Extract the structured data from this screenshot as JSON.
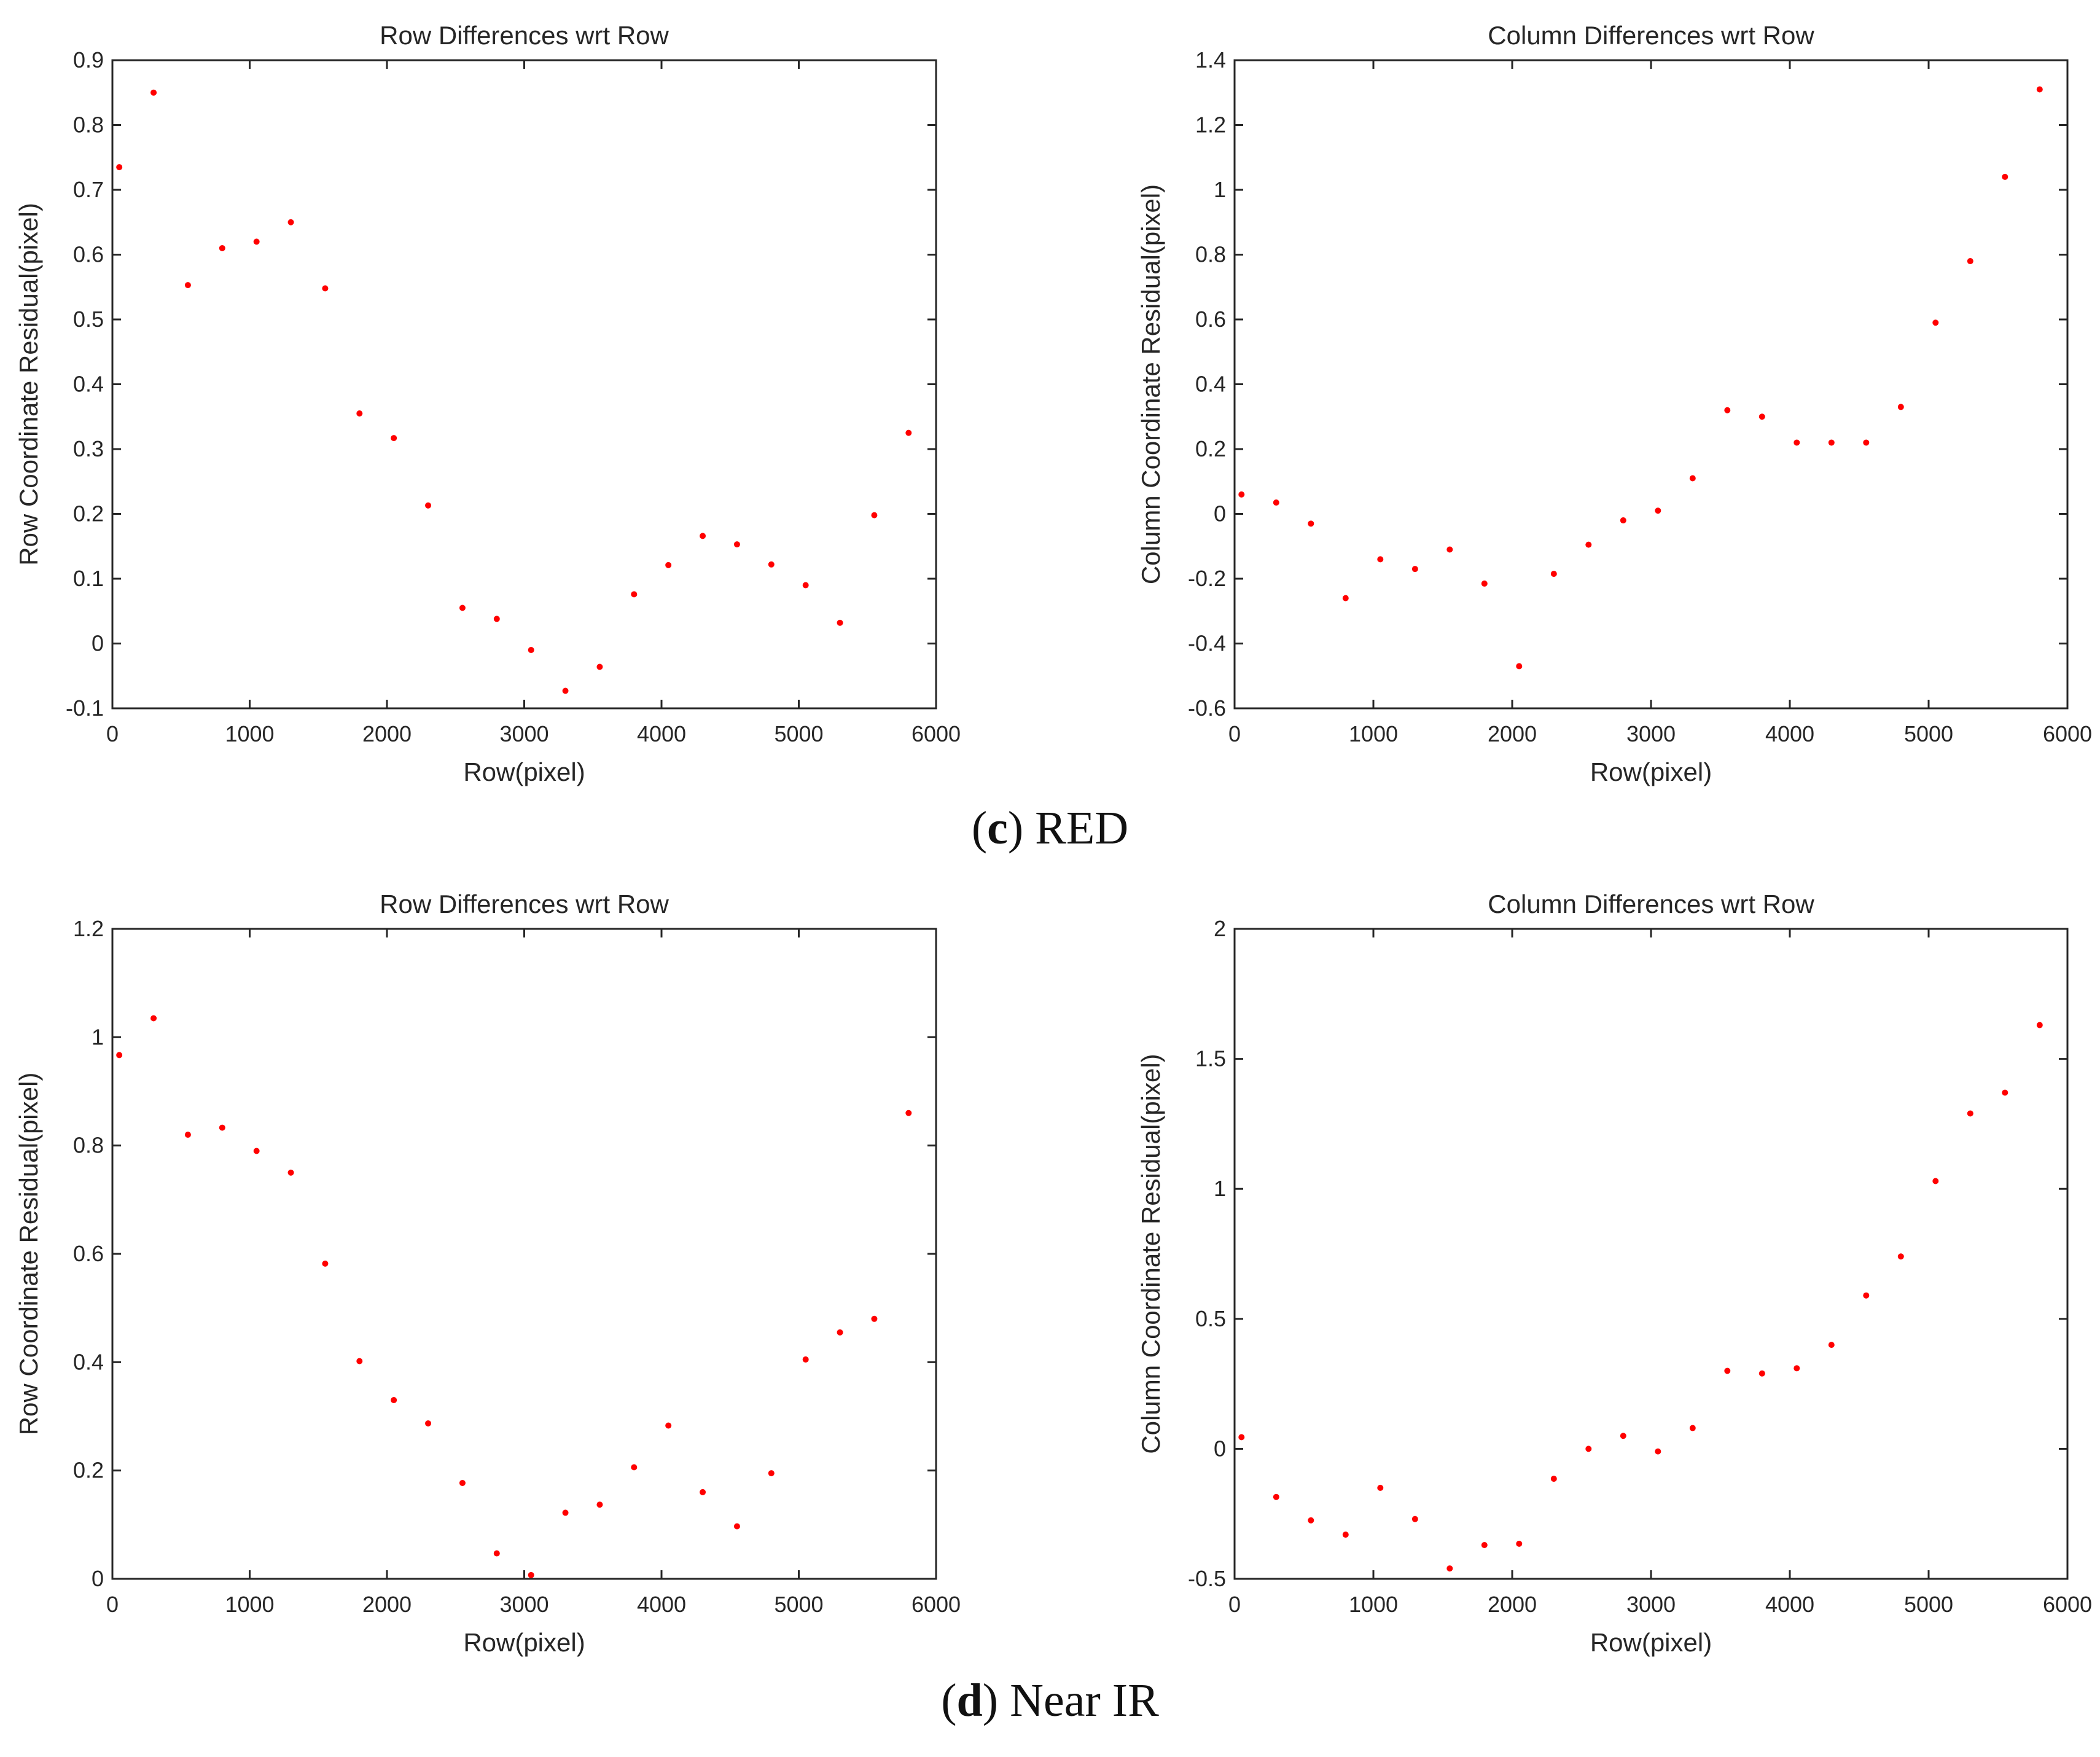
{
  "captions": [
    {
      "letter": "c",
      "text": "RED"
    },
    {
      "letter": "d",
      "text": "Near IR"
    }
  ],
  "colors": {
    "point": "#ff0000",
    "axis": "#262626",
    "text": "#262626"
  },
  "chart_data": [
    {
      "type": "scatter",
      "title": "Row Differences wrt Row",
      "xlabel": "Row(pixel)",
      "ylabel": "Row Coordinate Residual(pixel)",
      "xlim": [
        0,
        6000
      ],
      "ylim": [
        -0.1,
        0.9
      ],
      "xticks": [
        0,
        1000,
        2000,
        3000,
        4000,
        5000,
        6000
      ],
      "xtick_labels": [
        "0",
        "1000",
        "2000",
        "3000",
        "4000",
        "5000",
        "6000"
      ],
      "yticks": [
        -0.1,
        0,
        0.1,
        0.2,
        0.3,
        0.4,
        0.5,
        0.6,
        0.7,
        0.8,
        0.9
      ],
      "ytick_labels": [
        "-0.1",
        "0",
        "0.1",
        "0.2",
        "0.3",
        "0.4",
        "0.5",
        "0.6",
        "0.7",
        "0.8",
        "0.9"
      ],
      "grid": false,
      "x": [
        50,
        300,
        550,
        800,
        1050,
        1300,
        1550,
        1800,
        2050,
        2300,
        2550,
        2800,
        3050,
        3300,
        3550,
        3800,
        4050,
        4300,
        4550,
        4800,
        5050,
        5300,
        5550,
        5800
      ],
      "y": [
        0.735,
        0.85,
        0.553,
        0.61,
        0.62,
        0.65,
        0.548,
        0.355,
        0.317,
        0.213,
        0.055,
        0.038,
        -0.01,
        -0.073,
        -0.036,
        0.076,
        0.121,
        0.166,
        0.153,
        0.122,
        0.09,
        0.032,
        0.198,
        0.325
      ]
    },
    {
      "type": "scatter",
      "title": "Column Differences wrt Row",
      "xlabel": "Row(pixel)",
      "ylabel": "Column Coordinate Residual(pixel)",
      "xlim": [
        0,
        6000
      ],
      "ylim": [
        -0.6,
        1.4
      ],
      "xticks": [
        0,
        1000,
        2000,
        3000,
        4000,
        5000,
        6000
      ],
      "xtick_labels": [
        "0",
        "1000",
        "2000",
        "3000",
        "4000",
        "5000",
        "6000"
      ],
      "yticks": [
        -0.6,
        -0.4,
        -0.2,
        0,
        0.2,
        0.4,
        0.6,
        0.8,
        1,
        1.2,
        1.4
      ],
      "ytick_labels": [
        "-0.6",
        "-0.4",
        "-0.2",
        "0",
        "0.2",
        "0.4",
        "0.6",
        "0.8",
        "1",
        "1.2",
        "1.4"
      ],
      "grid": false,
      "x": [
        50,
        300,
        550,
        800,
        1050,
        1300,
        1550,
        1800,
        2050,
        2300,
        2550,
        2800,
        3050,
        3300,
        3550,
        3800,
        4050,
        4300,
        4550,
        4800,
        5050,
        5300,
        5550,
        5800
      ],
      "y": [
        0.06,
        0.035,
        -0.03,
        -0.26,
        -0.14,
        -0.17,
        -0.11,
        -0.215,
        -0.47,
        -0.185,
        -0.095,
        -0.02,
        0.01,
        0.11,
        0.32,
        0.3,
        0.22,
        0.22,
        0.22,
        0.33,
        0.59,
        0.78,
        1.04,
        1.31
      ]
    },
    {
      "type": "scatter",
      "title": "Row Differences wrt Row",
      "xlabel": "Row(pixel)",
      "ylabel": "Row Coordinate Residual(pixel)",
      "xlim": [
        0,
        6000
      ],
      "ylim": [
        0,
        1.2
      ],
      "xticks": [
        0,
        1000,
        2000,
        3000,
        4000,
        5000,
        6000
      ],
      "xtick_labels": [
        "0",
        "1000",
        "2000",
        "3000",
        "4000",
        "5000",
        "6000"
      ],
      "yticks": [
        0,
        0.2,
        0.4,
        0.6,
        0.8,
        1,
        1.2
      ],
      "ytick_labels": [
        "0",
        "0.2",
        "0.4",
        "0.6",
        "0.8",
        "1",
        "1.2"
      ],
      "grid": false,
      "x": [
        50,
        300,
        550,
        800,
        1050,
        1300,
        1550,
        1800,
        2050,
        2300,
        2550,
        2800,
        3050,
        3300,
        3550,
        3800,
        4050,
        4300,
        4550,
        4800,
        5050,
        5300,
        5550,
        5800
      ],
      "y": [
        0.967,
        1.035,
        0.82,
        0.833,
        0.79,
        0.75,
        0.582,
        0.402,
        0.33,
        0.287,
        0.177,
        0.047,
        0.007,
        0.122,
        0.137,
        0.206,
        0.283,
        0.16,
        0.097,
        0.195,
        0.405,
        0.455,
        0.48,
        0.86
      ]
    },
    {
      "type": "scatter",
      "title": "Column Differences wrt Row",
      "xlabel": "Row(pixel)",
      "ylabel": "Column Coordinate Residual(pixel)",
      "xlim": [
        0,
        6000
      ],
      "ylim": [
        -0.5,
        2
      ],
      "xticks": [
        0,
        1000,
        2000,
        3000,
        4000,
        5000,
        6000
      ],
      "xtick_labels": [
        "0",
        "1000",
        "2000",
        "3000",
        "4000",
        "5000",
        "6000"
      ],
      "yticks": [
        -0.5,
        0,
        0.5,
        1,
        1.5,
        2
      ],
      "ytick_labels": [
        "-0.5",
        "0",
        "0.5",
        "1",
        "1.5",
        "2"
      ],
      "grid": false,
      "x": [
        50,
        300,
        550,
        800,
        1050,
        1300,
        1550,
        1800,
        2050,
        2300,
        2550,
        2800,
        3050,
        3300,
        3550,
        3800,
        4050,
        4300,
        4550,
        4800,
        5050,
        5300,
        5550,
        5800
      ],
      "y": [
        0.045,
        -0.185,
        -0.275,
        -0.33,
        -0.15,
        -0.27,
        -0.46,
        -0.37,
        -0.365,
        -0.115,
        0.0,
        0.05,
        -0.01,
        0.08,
        0.3,
        0.29,
        0.31,
        0.4,
        0.59,
        0.74,
        1.03,
        1.29,
        1.37,
        1.63
      ]
    }
  ]
}
